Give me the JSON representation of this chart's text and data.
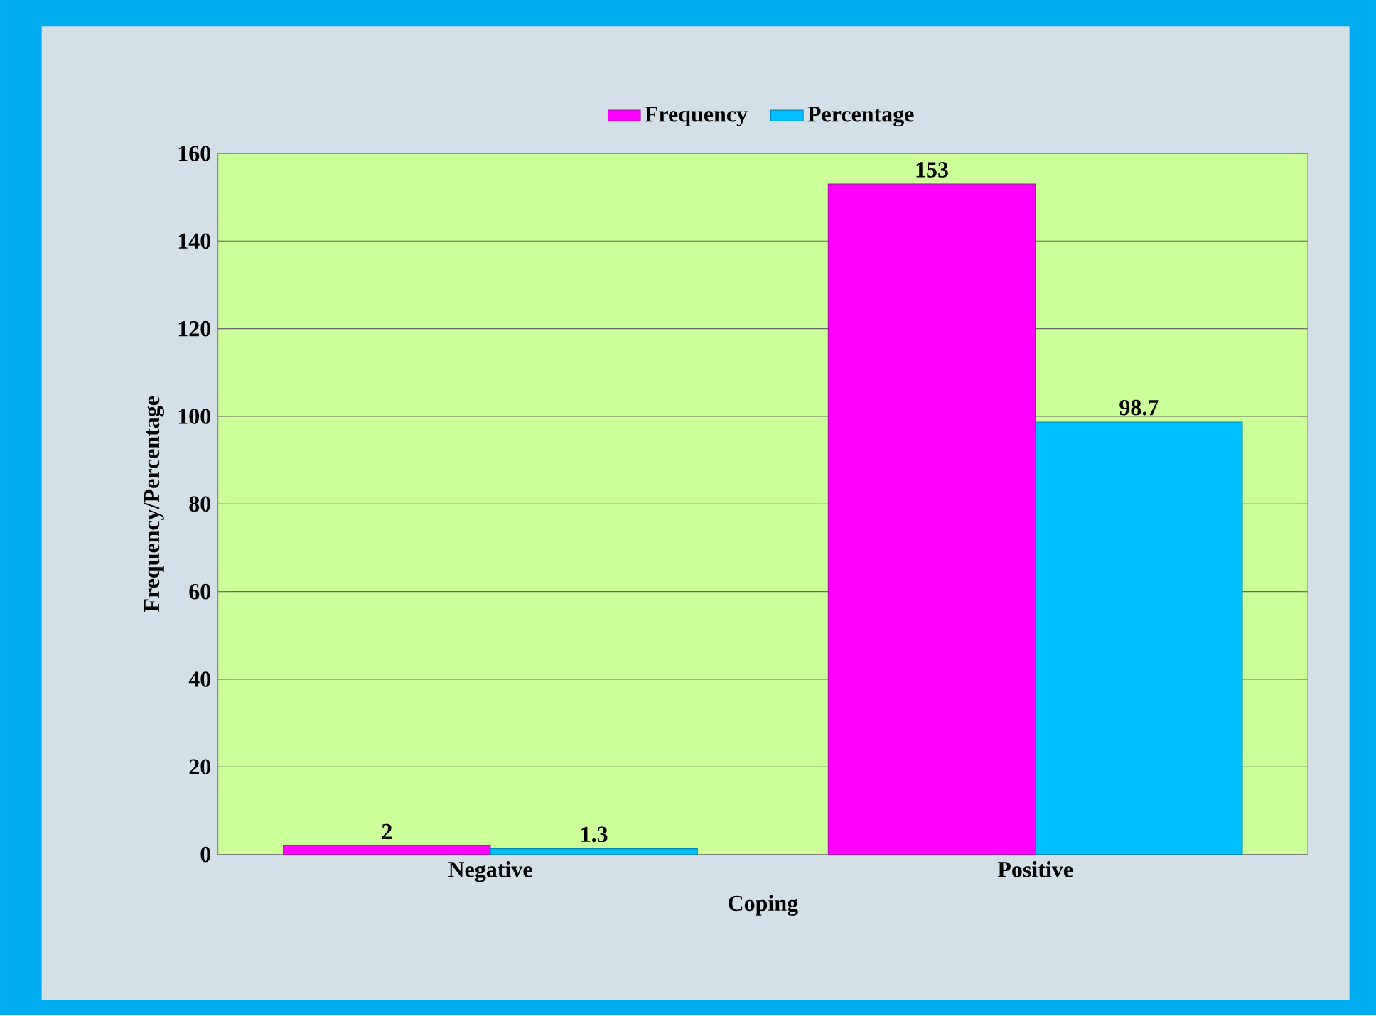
{
  "chart_data": {
    "type": "bar",
    "xlabel": "Coping",
    "ylabel": "Frequency/Percentage",
    "categories": [
      "Negative",
      "Positive"
    ],
    "series": [
      {
        "name": "Frequency",
        "color": "#ff00ff",
        "values": [
          2,
          153
        ]
      },
      {
        "name": "Percentage",
        "color": "#00bfff",
        "values": [
          1.3,
          98.7
        ]
      }
    ],
    "ylim": [
      0,
      160
    ],
    "yticks": [
      0,
      20,
      40,
      60,
      80,
      100,
      120,
      140,
      160
    ],
    "grid": "y",
    "legend": "top",
    "data_labels": true
  }
}
